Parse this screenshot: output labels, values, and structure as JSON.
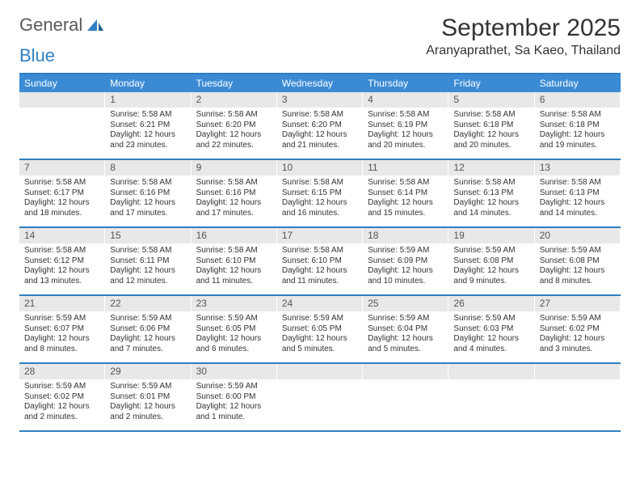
{
  "logo": {
    "general": "General",
    "blue": "Blue"
  },
  "title": "September 2025",
  "location": "Aranyaprathet, Sa Kaeo, Thailand",
  "colors": {
    "header_bar": "#3b8bd4",
    "border": "#2f7fc2",
    "daynum_bg": "#e8e8e8",
    "text": "#333333",
    "logo_gray": "#5a5a5a",
    "logo_blue": "#2f7fc2"
  },
  "weekdays": [
    "Sunday",
    "Monday",
    "Tuesday",
    "Wednesday",
    "Thursday",
    "Friday",
    "Saturday"
  ],
  "weeks": [
    [
      {
        "n": "",
        "sunrise": "",
        "sunset": "",
        "daylight": ""
      },
      {
        "n": "1",
        "sunrise": "Sunrise: 5:58 AM",
        "sunset": "Sunset: 6:21 PM",
        "daylight": "Daylight: 12 hours and 23 minutes."
      },
      {
        "n": "2",
        "sunrise": "Sunrise: 5:58 AM",
        "sunset": "Sunset: 6:20 PM",
        "daylight": "Daylight: 12 hours and 22 minutes."
      },
      {
        "n": "3",
        "sunrise": "Sunrise: 5:58 AM",
        "sunset": "Sunset: 6:20 PM",
        "daylight": "Daylight: 12 hours and 21 minutes."
      },
      {
        "n": "4",
        "sunrise": "Sunrise: 5:58 AM",
        "sunset": "Sunset: 6:19 PM",
        "daylight": "Daylight: 12 hours and 20 minutes."
      },
      {
        "n": "5",
        "sunrise": "Sunrise: 5:58 AM",
        "sunset": "Sunset: 6:18 PM",
        "daylight": "Daylight: 12 hours and 20 minutes."
      },
      {
        "n": "6",
        "sunrise": "Sunrise: 5:58 AM",
        "sunset": "Sunset: 6:18 PM",
        "daylight": "Daylight: 12 hours and 19 minutes."
      }
    ],
    [
      {
        "n": "7",
        "sunrise": "Sunrise: 5:58 AM",
        "sunset": "Sunset: 6:17 PM",
        "daylight": "Daylight: 12 hours and 18 minutes."
      },
      {
        "n": "8",
        "sunrise": "Sunrise: 5:58 AM",
        "sunset": "Sunset: 6:16 PM",
        "daylight": "Daylight: 12 hours and 17 minutes."
      },
      {
        "n": "9",
        "sunrise": "Sunrise: 5:58 AM",
        "sunset": "Sunset: 6:16 PM",
        "daylight": "Daylight: 12 hours and 17 minutes."
      },
      {
        "n": "10",
        "sunrise": "Sunrise: 5:58 AM",
        "sunset": "Sunset: 6:15 PM",
        "daylight": "Daylight: 12 hours and 16 minutes."
      },
      {
        "n": "11",
        "sunrise": "Sunrise: 5:58 AM",
        "sunset": "Sunset: 6:14 PM",
        "daylight": "Daylight: 12 hours and 15 minutes."
      },
      {
        "n": "12",
        "sunrise": "Sunrise: 5:58 AM",
        "sunset": "Sunset: 6:13 PM",
        "daylight": "Daylight: 12 hours and 14 minutes."
      },
      {
        "n": "13",
        "sunrise": "Sunrise: 5:58 AM",
        "sunset": "Sunset: 6:13 PM",
        "daylight": "Daylight: 12 hours and 14 minutes."
      }
    ],
    [
      {
        "n": "14",
        "sunrise": "Sunrise: 5:58 AM",
        "sunset": "Sunset: 6:12 PM",
        "daylight": "Daylight: 12 hours and 13 minutes."
      },
      {
        "n": "15",
        "sunrise": "Sunrise: 5:58 AM",
        "sunset": "Sunset: 6:11 PM",
        "daylight": "Daylight: 12 hours and 12 minutes."
      },
      {
        "n": "16",
        "sunrise": "Sunrise: 5:58 AM",
        "sunset": "Sunset: 6:10 PM",
        "daylight": "Daylight: 12 hours and 11 minutes."
      },
      {
        "n": "17",
        "sunrise": "Sunrise: 5:58 AM",
        "sunset": "Sunset: 6:10 PM",
        "daylight": "Daylight: 12 hours and 11 minutes."
      },
      {
        "n": "18",
        "sunrise": "Sunrise: 5:59 AM",
        "sunset": "Sunset: 6:09 PM",
        "daylight": "Daylight: 12 hours and 10 minutes."
      },
      {
        "n": "19",
        "sunrise": "Sunrise: 5:59 AM",
        "sunset": "Sunset: 6:08 PM",
        "daylight": "Daylight: 12 hours and 9 minutes."
      },
      {
        "n": "20",
        "sunrise": "Sunrise: 5:59 AM",
        "sunset": "Sunset: 6:08 PM",
        "daylight": "Daylight: 12 hours and 8 minutes."
      }
    ],
    [
      {
        "n": "21",
        "sunrise": "Sunrise: 5:59 AM",
        "sunset": "Sunset: 6:07 PM",
        "daylight": "Daylight: 12 hours and 8 minutes."
      },
      {
        "n": "22",
        "sunrise": "Sunrise: 5:59 AM",
        "sunset": "Sunset: 6:06 PM",
        "daylight": "Daylight: 12 hours and 7 minutes."
      },
      {
        "n": "23",
        "sunrise": "Sunrise: 5:59 AM",
        "sunset": "Sunset: 6:05 PM",
        "daylight": "Daylight: 12 hours and 6 minutes."
      },
      {
        "n": "24",
        "sunrise": "Sunrise: 5:59 AM",
        "sunset": "Sunset: 6:05 PM",
        "daylight": "Daylight: 12 hours and 5 minutes."
      },
      {
        "n": "25",
        "sunrise": "Sunrise: 5:59 AM",
        "sunset": "Sunset: 6:04 PM",
        "daylight": "Daylight: 12 hours and 5 minutes."
      },
      {
        "n": "26",
        "sunrise": "Sunrise: 5:59 AM",
        "sunset": "Sunset: 6:03 PM",
        "daylight": "Daylight: 12 hours and 4 minutes."
      },
      {
        "n": "27",
        "sunrise": "Sunrise: 5:59 AM",
        "sunset": "Sunset: 6:02 PM",
        "daylight": "Daylight: 12 hours and 3 minutes."
      }
    ],
    [
      {
        "n": "28",
        "sunrise": "Sunrise: 5:59 AM",
        "sunset": "Sunset: 6:02 PM",
        "daylight": "Daylight: 12 hours and 2 minutes."
      },
      {
        "n": "29",
        "sunrise": "Sunrise: 5:59 AM",
        "sunset": "Sunset: 6:01 PM",
        "daylight": "Daylight: 12 hours and 2 minutes."
      },
      {
        "n": "30",
        "sunrise": "Sunrise: 5:59 AM",
        "sunset": "Sunset: 6:00 PM",
        "daylight": "Daylight: 12 hours and 1 minute."
      },
      {
        "n": "",
        "sunrise": "",
        "sunset": "",
        "daylight": ""
      },
      {
        "n": "",
        "sunrise": "",
        "sunset": "",
        "daylight": ""
      },
      {
        "n": "",
        "sunrise": "",
        "sunset": "",
        "daylight": ""
      },
      {
        "n": "",
        "sunrise": "",
        "sunset": "",
        "daylight": ""
      }
    ]
  ]
}
